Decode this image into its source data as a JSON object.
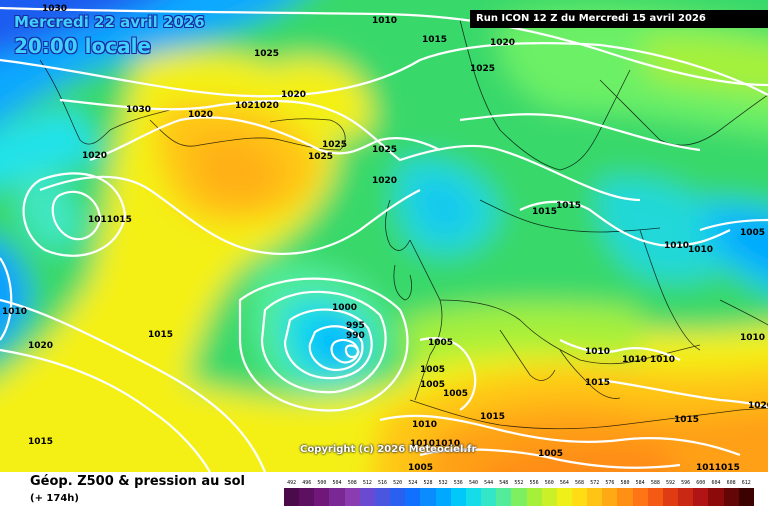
{
  "header": {
    "date": "Mercredi 22 avril 2026",
    "time": "20:00 locale",
    "run": "Run ICON 12 Z du Mercredi 15 avril 2026"
  },
  "copyright": "Copyright (c) 2026 Meteociel.fr",
  "footer": {
    "title": "Géop. Z500 & pression au sol",
    "subtitle": "(+ 174h)"
  },
  "legend": {
    "values": [
      "492",
      "496",
      "500",
      "504",
      "508",
      "512",
      "516",
      "520",
      "524",
      "528",
      "532",
      "536",
      "540",
      "544",
      "548",
      "552",
      "556",
      "560",
      "564",
      "568",
      "572",
      "576",
      "580",
      "584",
      "588",
      "592",
      "596",
      "600",
      "604",
      "608",
      "612"
    ],
    "colors": [
      "#4b0b4b",
      "#5e1060",
      "#71177a",
      "#7a2894",
      "#8a3cb0",
      "#6a4ad0",
      "#4a55e0",
      "#2a60f0",
      "#1070ff",
      "#0a8cff",
      "#00a8ff",
      "#00c8f8",
      "#14dce8",
      "#33e6c8",
      "#52ec9a",
      "#7cf060",
      "#a6f03a",
      "#ccf028",
      "#f0f018",
      "#ffdc14",
      "#ffc414",
      "#ffaa14",
      "#ff9014",
      "#ff7414",
      "#f45a14",
      "#e03c14",
      "#c82814",
      "#b01414",
      "#8c0a0a",
      "#640606",
      "#3c0202"
    ]
  },
  "isobars": {
    "labels": [
      "1030",
      "1010",
      "1015",
      "1020",
      "1025",
      "1025",
      "1020",
      "1030",
      "1020",
      "1021020",
      "1020",
      "1025",
      "1025",
      "1025",
      "1020",
      "1015",
      "1015",
      "1011015",
      "1010",
      "1005",
      "1010",
      "1010",
      "1015",
      "1020",
      "1000",
      "995",
      "990",
      "1005",
      "1005",
      "1005",
      "1010",
      "1010",
      "1010",
      "1015",
      "1010",
      "1005",
      "1005",
      "1015",
      "1020",
      "1015",
      "1005",
      "10101010",
      "1015",
      "1011015",
      "1010"
    ]
  }
}
